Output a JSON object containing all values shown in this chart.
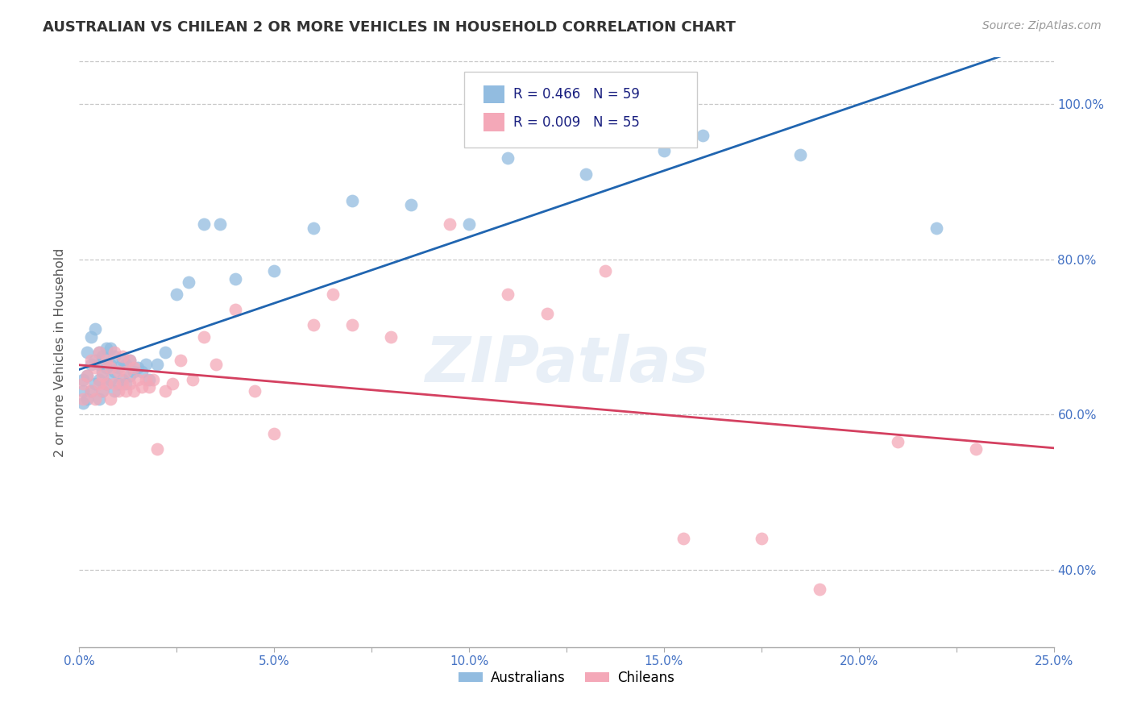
{
  "title": "AUSTRALIAN VS CHILEAN 2 OR MORE VEHICLES IN HOUSEHOLD CORRELATION CHART",
  "source": "Source: ZipAtlas.com",
  "xlabel_ticks": [
    "0.0%",
    "",
    "5.0%",
    "",
    "10.0%",
    "",
    "15.0%",
    "",
    "20.0%",
    "",
    "25.0%"
  ],
  "xlabel_vals": [
    0.0,
    0.025,
    0.05,
    0.075,
    0.1,
    0.125,
    0.15,
    0.175,
    0.2,
    0.225,
    0.25
  ],
  "ylabel_ticks": [
    "40.0%",
    "60.0%",
    "80.0%",
    "100.0%"
  ],
  "ylabel_vals": [
    0.4,
    0.6,
    0.8,
    1.0
  ],
  "ylabel_label": "2 or more Vehicles in Household",
  "watermark": "ZIPatlas",
  "legend_line1": "R = 0.466   N = 59",
  "legend_line2": "R = 0.009   N = 55",
  "legend_label1": "Australians",
  "legend_label2": "Chileans",
  "blue_color": "#92bce0",
  "pink_color": "#f4a8b8",
  "trend_blue": "#2065b0",
  "trend_pink": "#d44060",
  "title_color": "#333333",
  "axis_tick_color": "#4472c4",
  "grid_color": "#c8c8c8",
  "x_min": 0.0,
  "x_max": 0.25,
  "y_min": 0.3,
  "y_max": 1.06,
  "australian_x": [
    0.001,
    0.001,
    0.001,
    0.002,
    0.002,
    0.002,
    0.003,
    0.003,
    0.003,
    0.004,
    0.004,
    0.004,
    0.005,
    0.005,
    0.005,
    0.005,
    0.006,
    0.006,
    0.006,
    0.007,
    0.007,
    0.007,
    0.008,
    0.008,
    0.008,
    0.009,
    0.009,
    0.009,
    0.01,
    0.01,
    0.011,
    0.011,
    0.012,
    0.012,
    0.013,
    0.013,
    0.014,
    0.015,
    0.016,
    0.017,
    0.018,
    0.02,
    0.022,
    0.025,
    0.028,
    0.032,
    0.036,
    0.04,
    0.05,
    0.06,
    0.07,
    0.085,
    0.1,
    0.11,
    0.13,
    0.15,
    0.16,
    0.185,
    0.22
  ],
  "australian_y": [
    0.615,
    0.63,
    0.645,
    0.62,
    0.65,
    0.68,
    0.63,
    0.665,
    0.7,
    0.64,
    0.67,
    0.71,
    0.62,
    0.645,
    0.665,
    0.68,
    0.63,
    0.655,
    0.675,
    0.64,
    0.66,
    0.685,
    0.645,
    0.665,
    0.685,
    0.63,
    0.655,
    0.675,
    0.64,
    0.66,
    0.645,
    0.67,
    0.64,
    0.665,
    0.65,
    0.67,
    0.655,
    0.66,
    0.655,
    0.665,
    0.645,
    0.665,
    0.68,
    0.755,
    0.77,
    0.845,
    0.845,
    0.775,
    0.785,
    0.84,
    0.875,
    0.87,
    0.845,
    0.93,
    0.91,
    0.94,
    0.96,
    0.935,
    0.84
  ],
  "chilean_x": [
    0.001,
    0.001,
    0.002,
    0.003,
    0.003,
    0.004,
    0.004,
    0.005,
    0.005,
    0.006,
    0.006,
    0.007,
    0.007,
    0.008,
    0.008,
    0.009,
    0.009,
    0.01,
    0.01,
    0.011,
    0.011,
    0.012,
    0.012,
    0.013,
    0.013,
    0.014,
    0.014,
    0.015,
    0.016,
    0.017,
    0.018,
    0.019,
    0.02,
    0.022,
    0.024,
    0.026,
    0.029,
    0.032,
    0.035,
    0.04,
    0.045,
    0.05,
    0.06,
    0.065,
    0.07,
    0.08,
    0.095,
    0.11,
    0.12,
    0.135,
    0.155,
    0.175,
    0.19,
    0.21,
    0.23
  ],
  "chilean_y": [
    0.62,
    0.64,
    0.65,
    0.63,
    0.67,
    0.62,
    0.66,
    0.64,
    0.68,
    0.63,
    0.65,
    0.64,
    0.67,
    0.62,
    0.66,
    0.64,
    0.68,
    0.63,
    0.655,
    0.64,
    0.675,
    0.63,
    0.655,
    0.64,
    0.67,
    0.63,
    0.66,
    0.645,
    0.635,
    0.645,
    0.635,
    0.645,
    0.555,
    0.63,
    0.64,
    0.67,
    0.645,
    0.7,
    0.665,
    0.735,
    0.63,
    0.575,
    0.715,
    0.755,
    0.715,
    0.7,
    0.845,
    0.755,
    0.73,
    0.785,
    0.44,
    0.44,
    0.375,
    0.565,
    0.555
  ],
  "marker_size": 130
}
